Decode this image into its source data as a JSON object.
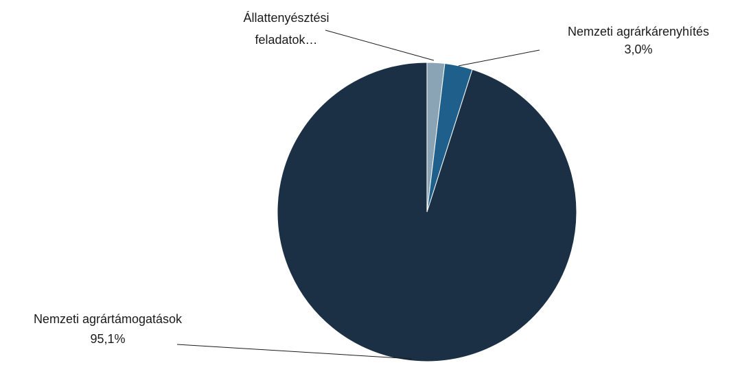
{
  "chart_data": {
    "type": "pie",
    "start_angle_deg": 0,
    "direction": "clockwise",
    "slices": [
      {
        "label_lines": [
          "Állattenyésztési",
          "feladatok…"
        ],
        "value": 1.9,
        "color": "#8aa4b6"
      },
      {
        "label_lines": [
          "Nemzeti agrárkárenyhítés",
          "3,0%"
        ],
        "value": 3.0,
        "color": "#1f5f8b"
      },
      {
        "label_lines": [
          "Nemzeti agrártámogatások",
          "95,1%"
        ],
        "value": 95.1,
        "color": "#1b3044"
      }
    ],
    "leader_line_color": "#1a1a1a",
    "slice_border_color": "#ffffff"
  }
}
